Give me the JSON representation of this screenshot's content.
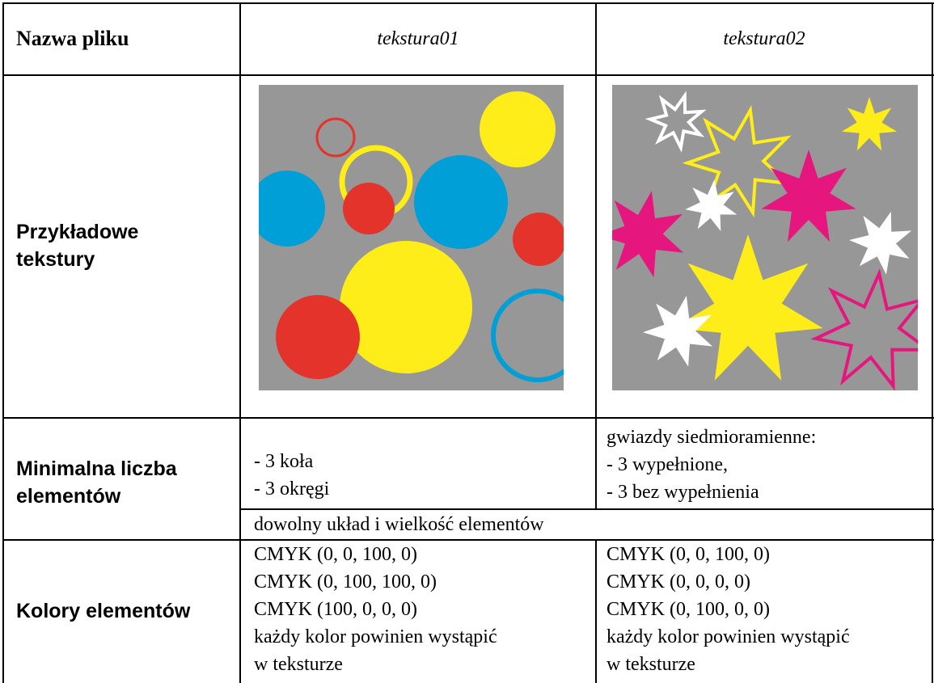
{
  "table": {
    "header": {
      "label": "Nazwa pliku",
      "files": [
        "tekstura01",
        "tekstura02"
      ]
    },
    "textures": {
      "label": [
        "Przykładowe",
        "tekstury"
      ]
    },
    "min_elements": {
      "label": [
        "Minimalna liczba",
        "elementów"
      ],
      "tekstura01": [
        "- 3 koła",
        "- 3 okręgi"
      ],
      "tekstura02": [
        "gwiazdy siedmioramienne:",
        "- 3 wypełnione,",
        "- 3 bez wypełnienia"
      ],
      "common": "dowolny układ i wielkość elementów"
    },
    "colors": {
      "label": "Kolory elementów",
      "tekstura01": [
        "CMYK (0, 0, 100, 0)",
        "CMYK (0, 100, 100, 0)",
        "CMYK (100, 0, 0, 0)",
        "każdy kolor powinien wystąpić",
        "w teksturze"
      ],
      "tekstura02": [
        "CMYK (0, 0, 100, 0)",
        "CMYK (0, 0, 0, 0)",
        "CMYK (0, 100, 0, 0)",
        "każdy kolor powinien wystąpić",
        "w teksturze"
      ]
    }
  }
}
